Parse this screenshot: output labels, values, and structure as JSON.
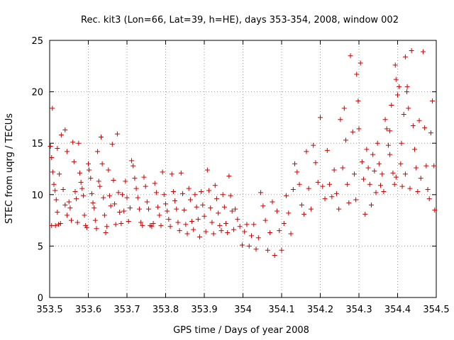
{
  "chart_data": {
    "type": "scatter",
    "title": "Rec. kit3 (Lon=66, Lat=39, h=HE), days 353-354, 2008, window 002",
    "xlabel": "GPS time / Days of year 2008",
    "ylabel": "STEC from uqrg / TECUs",
    "xlim": [
      353.5,
      354.5
    ],
    "ylim": [
      0,
      25
    ],
    "x_ticks": [
      "353.5",
      "353.6",
      "353.7",
      "353.8",
      "353.9",
      "354",
      "354.1",
      "354.2",
      "354.3",
      "354.4",
      "354.5"
    ],
    "y_ticks": [
      "0",
      "5",
      "10",
      "15",
      "20",
      "25"
    ],
    "grid": true,
    "legend": "none",
    "marker": "+",
    "color": "#cc0000",
    "points": [
      [
        353.502,
        14.7
      ],
      [
        353.505,
        13.6
      ],
      [
        353.508,
        12.2
      ],
      [
        353.511,
        11.0
      ],
      [
        353.514,
        10.4
      ],
      [
        353.517,
        9.5
      ],
      [
        353.52,
        8.3
      ],
      [
        353.523,
        7.1
      ],
      [
        353.507,
        18.4
      ],
      [
        353.505,
        7.0
      ],
      [
        353.515,
        7.0
      ],
      [
        353.52,
        14.5
      ],
      [
        353.525,
        12.0
      ],
      [
        353.53,
        15.8
      ],
      [
        353.535,
        10.5
      ],
      [
        353.54,
        9.0
      ],
      [
        353.545,
        8.0
      ],
      [
        353.528,
        7.2
      ],
      [
        353.54,
        16.3
      ],
      [
        353.545,
        14.2
      ],
      [
        353.55,
        9.3
      ],
      [
        353.553,
        8.7
      ],
      [
        353.556,
        7.5
      ],
      [
        353.56,
        15.1
      ],
      [
        353.563,
        13.2
      ],
      [
        353.566,
        10.3
      ],
      [
        353.569,
        9.6
      ],
      [
        353.572,
        7.3
      ],
      [
        353.575,
        15.0
      ],
      [
        353.578,
        12.1
      ],
      [
        353.581,
        11.2
      ],
      [
        353.584,
        10.6
      ],
      [
        353.587,
        9.9
      ],
      [
        353.59,
        8.0
      ],
      [
        353.593,
        7.0
      ],
      [
        353.596,
        6.8
      ],
      [
        353.6,
        13.0
      ],
      [
        353.602,
        12.4
      ],
      [
        353.606,
        11.6
      ],
      [
        353.609,
        10.1
      ],
      [
        353.612,
        9.2
      ],
      [
        353.615,
        8.7
      ],
      [
        353.618,
        7.5
      ],
      [
        353.621,
        6.7
      ],
      [
        353.624,
        14.2
      ],
      [
        353.627,
        11.3
      ],
      [
        353.63,
        10.8
      ],
      [
        353.633,
        15.6
      ],
      [
        353.636,
        13.0
      ],
      [
        353.639,
        9.7
      ],
      [
        353.642,
        8.0
      ],
      [
        353.645,
        6.3
      ],
      [
        353.648,
        6.9
      ],
      [
        353.652,
        12.4
      ],
      [
        353.655,
        9.9
      ],
      [
        353.658,
        8.9
      ],
      [
        353.662,
        14.9
      ],
      [
        353.665,
        11.4
      ],
      [
        353.668,
        9.1
      ],
      [
        353.671,
        7.1
      ],
      [
        353.675,
        15.9
      ],
      [
        353.678,
        10.2
      ],
      [
        353.681,
        8.3
      ],
      [
        353.685,
        7.2
      ],
      [
        353.688,
        10.0
      ],
      [
        353.692,
        8.4
      ],
      [
        353.696,
        11.3
      ],
      [
        353.7,
        9.7
      ],
      [
        353.704,
        7.4
      ],
      [
        353.708,
        8.7
      ],
      [
        353.712,
        13.3
      ],
      [
        353.716,
        12.8
      ],
      [
        353.72,
        11.6
      ],
      [
        353.724,
        10.6
      ],
      [
        353.728,
        9.7
      ],
      [
        353.732,
        8.6
      ],
      [
        353.736,
        7.3
      ],
      [
        353.74,
        7.0
      ],
      [
        353.744,
        11.7
      ],
      [
        353.748,
        10.8
      ],
      [
        353.752,
        9.3
      ],
      [
        353.756,
        8.6
      ],
      [
        353.76,
        7.0
      ],
      [
        353.764,
        6.9
      ],
      [
        353.768,
        7.2
      ],
      [
        353.772,
        11.1
      ],
      [
        353.776,
        10.2
      ],
      [
        353.78,
        8.8
      ],
      [
        353.784,
        8.0
      ],
      [
        353.788,
        7.0
      ],
      [
        353.792,
        12.2
      ],
      [
        353.796,
        10.0
      ],
      [
        353.8,
        9.1
      ],
      [
        353.804,
        8.4
      ],
      [
        353.808,
        7.6
      ],
      [
        353.812,
        6.9
      ],
      [
        353.816,
        12.0
      ],
      [
        353.82,
        10.3
      ],
      [
        353.824,
        9.4
      ],
      [
        353.828,
        8.6
      ],
      [
        353.832,
        7.3
      ],
      [
        353.836,
        6.5
      ],
      [
        353.84,
        12.1
      ],
      [
        353.844,
        10.1
      ],
      [
        353.848,
        8.5
      ],
      [
        353.852,
        7.1
      ],
      [
        353.856,
        6.2
      ],
      [
        353.86,
        10.6
      ],
      [
        353.864,
        9.5
      ],
      [
        353.868,
        7.4
      ],
      [
        353.872,
        6.6
      ],
      [
        353.876,
        10.0
      ],
      [
        353.88,
        8.8
      ],
      [
        353.884,
        7.6
      ],
      [
        353.888,
        5.9
      ],
      [
        353.892,
        10.3
      ],
      [
        353.896,
        9.0
      ],
      [
        353.9,
        7.9
      ],
      [
        353.904,
        6.4
      ],
      [
        353.908,
        12.4
      ],
      [
        353.912,
        10.4
      ],
      [
        353.916,
        8.7
      ],
      [
        353.92,
        7.3
      ],
      [
        353.924,
        6.2
      ],
      [
        353.928,
        10.9
      ],
      [
        353.932,
        9.6
      ],
      [
        353.936,
        8.2
      ],
      [
        353.94,
        7.0
      ],
      [
        353.944,
        6.5
      ],
      [
        353.948,
        10.0
      ],
      [
        353.952,
        8.8
      ],
      [
        353.956,
        7.2
      ],
      [
        353.96,
        6.3
      ],
      [
        353.964,
        11.8
      ],
      [
        353.968,
        9.9
      ],
      [
        353.972,
        8.4
      ],
      [
        353.976,
        6.6
      ],
      [
        353.98,
        8.6
      ],
      [
        353.986,
        7.6
      ],
      [
        353.992,
        6.9
      ],
      [
        353.998,
        5.1
      ],
      [
        354.004,
        6.4
      ],
      [
        354.01,
        7.1
      ],
      [
        354.016,
        5.0
      ],
      [
        354.022,
        6.0
      ],
      [
        354.028,
        7.1
      ],
      [
        354.034,
        4.7
      ],
      [
        354.04,
        5.8
      ],
      [
        354.046,
        10.2
      ],
      [
        354.052,
        8.9
      ],
      [
        354.058,
        7.5
      ],
      [
        354.064,
        4.6
      ],
      [
        354.07,
        6.3
      ],
      [
        354.076,
        9.3
      ],
      [
        354.082,
        4.1
      ],
      [
        354.088,
        8.4
      ],
      [
        354.094,
        6.5
      ],
      [
        354.1,
        4.6
      ],
      [
        354.106,
        7.2
      ],
      [
        354.112,
        9.9
      ],
      [
        354.118,
        8.2
      ],
      [
        354.124,
        6.2
      ],
      [
        354.13,
        10.5
      ],
      [
        354.134,
        13.0
      ],
      [
        354.14,
        12.2
      ],
      [
        354.146,
        11.0
      ],
      [
        354.152,
        9.0
      ],
      [
        354.158,
        8.1
      ],
      [
        354.164,
        14.2
      ],
      [
        354.17,
        10.6
      ],
      [
        354.176,
        8.6
      ],
      [
        354.182,
        14.8
      ],
      [
        354.188,
        13.1
      ],
      [
        354.194,
        11.2
      ],
      [
        354.2,
        17.5
      ],
      [
        354.206,
        10.8
      ],
      [
        354.212,
        9.6
      ],
      [
        354.218,
        14.3
      ],
      [
        354.224,
        11.0
      ],
      [
        354.23,
        9.8
      ],
      [
        354.236,
        12.4
      ],
      [
        354.242,
        10.1
      ],
      [
        354.248,
        8.6
      ],
      [
        354.252,
        17.3
      ],
      [
        354.258,
        12.6
      ],
      [
        354.262,
        18.4
      ],
      [
        354.266,
        15.3
      ],
      [
        354.27,
        11.0
      ],
      [
        354.274,
        9.2
      ],
      [
        354.278,
        23.5
      ],
      [
        354.284,
        16.1
      ],
      [
        354.288,
        12.0
      ],
      [
        354.292,
        9.5
      ],
      [
        354.294,
        21.7
      ],
      [
        354.298,
        19.1
      ],
      [
        354.3,
        16.4
      ],
      [
        354.304,
        22.8
      ],
      [
        354.308,
        13.2
      ],
      [
        354.312,
        11.5
      ],
      [
        354.316,
        8.1
      ],
      [
        354.32,
        14.4
      ],
      [
        354.324,
        12.6
      ],
      [
        354.328,
        11.0
      ],
      [
        354.332,
        9.0
      ],
      [
        354.336,
        13.9
      ],
      [
        354.34,
        12.3
      ],
      [
        354.344,
        10.2
      ],
      [
        354.348,
        15.0
      ],
      [
        354.352,
        13.0
      ],
      [
        354.356,
        10.9
      ],
      [
        354.36,
        12.0
      ],
      [
        354.364,
        10.3
      ],
      [
        354.368,
        17.3
      ],
      [
        354.372,
        16.4
      ],
      [
        354.376,
        14.8
      ],
      [
        354.38,
        13.9
      ],
      [
        354.384,
        18.7
      ],
      [
        354.388,
        12.1
      ],
      [
        354.392,
        11.0
      ],
      [
        354.394,
        22.6
      ],
      [
        354.396,
        21.2
      ],
      [
        354.4,
        19.7
      ],
      [
        354.404,
        20.5
      ],
      [
        354.408,
        13.0
      ],
      [
        354.412,
        10.8
      ],
      [
        354.416,
        17.8
      ],
      [
        354.42,
        12.0
      ],
      [
        354.424,
        20.0
      ],
      [
        354.428,
        18.4
      ],
      [
        354.432,
        10.6
      ],
      [
        354.436,
        24.0
      ],
      [
        354.44,
        16.7
      ],
      [
        354.444,
        14.4
      ],
      [
        354.448,
        12.6
      ],
      [
        354.452,
        10.3
      ],
      [
        354.456,
        17.2
      ],
      [
        354.46,
        11.6
      ],
      [
        354.466,
        23.9
      ],
      [
        354.47,
        16.5
      ],
      [
        354.474,
        12.8
      ],
      [
        354.478,
        10.5
      ],
      [
        354.482,
        9.6
      ],
      [
        354.486,
        16.0
      ],
      [
        354.49,
        19.1
      ],
      [
        354.494,
        12.8
      ],
      [
        354.496,
        8.5
      ],
      [
        354.42,
        23.4
      ],
      [
        354.425,
        20.5
      ],
      [
        354.38,
        16.2
      ],
      [
        354.396,
        11.7
      ],
      [
        354.41,
        15.0
      ]
    ]
  }
}
